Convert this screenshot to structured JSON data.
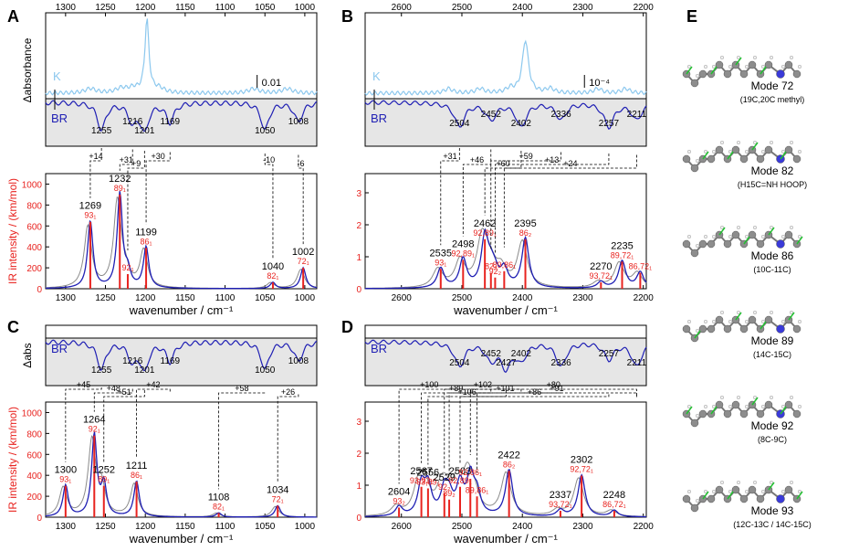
{
  "figure": {
    "y_axis_shared_left": "IR intensity / (km/mol)",
    "colors": {
      "bandA": "#1f1fb4",
      "calc": "#1f1fb4",
      "stick": "#e8231f",
      "exp": "#8a8a8a",
      "k": "#8cc8ee",
      "shade": "#e6e6e6",
      "label_red": "#e8231f"
    }
  },
  "chart_data": [
    {
      "id": "A",
      "type": "line",
      "top": {
        "ylabel": "Δabsorbance",
        "k_label": "K",
        "br_label": "BR",
        "scale_label": "0.01",
        "top_ticks": [
          1300,
          1250,
          1200,
          1150,
          1100,
          1050,
          1000
        ],
        "xlim": [
          1325,
          985
        ],
        "br_peaks": [
          1255,
          1216,
          1201,
          1169,
          1050,
          1008
        ]
      },
      "bottom": {
        "ylabel": "IR intensity / (km/mol)",
        "xlabel": "wavenumber / cm⁻¹",
        "xlim": [
          1325,
          985
        ],
        "ylim": [
          0,
          1100
        ],
        "yticks": [
          0,
          200,
          400,
          600,
          800,
          1000
        ],
        "xticks": [
          1300,
          1250,
          1200,
          1150,
          1100,
          1050,
          1000
        ],
        "sticks": [
          {
            "x": 1269,
            "y": 640,
            "label": "1269",
            "sub": "93₁"
          },
          {
            "x": 1232,
            "y": 900,
            "label": "1232",
            "sub": "89₁"
          },
          {
            "x": 1222,
            "y": 140,
            "label": "",
            "sub": "92₁"
          },
          {
            "x": 1199,
            "y": 390,
            "label": "1199",
            "sub": "86₁"
          },
          {
            "x": 1040,
            "y": 60,
            "label": "1040",
            "sub": "82₁"
          },
          {
            "x": 1002,
            "y": 200,
            "label": "1002",
            "sub": "72₁"
          }
        ],
        "shifts": [
          "+14",
          "+31",
          "+9",
          "+30",
          "-10",
          "-6"
        ]
      }
    },
    {
      "id": "B",
      "type": "line",
      "top": {
        "k_label": "K",
        "br_label": "BR",
        "scale_label": "10⁻⁴",
        "top_ticks": [
          2600,
          2500,
          2400,
          2300,
          2200
        ],
        "xlim": [
          2660,
          2195
        ],
        "br_peaks": [
          2504,
          2452,
          2402,
          2336,
          2257,
          2211
        ]
      },
      "bottom": {
        "xlabel": "wavenumber / cm⁻¹",
        "xlim": [
          2660,
          2195
        ],
        "ylim": [
          0,
          3.6
        ],
        "yticks": [
          0,
          1,
          2,
          3
        ],
        "xticks": [
          2600,
          2500,
          2400,
          2300,
          2200
        ],
        "sticks": [
          {
            "x": 2535,
            "y": 0.62,
            "label": "2535",
            "sub": "93₁"
          },
          {
            "x": 2498,
            "y": 0.9,
            "label": "2498",
            "sub": "92,89₁"
          },
          {
            "x": 2462,
            "y": 1.55,
            "label": "2462",
            "sub": "92,89₁"
          },
          {
            "x": 2452,
            "y": 0.5,
            "label": "",
            "sub": "82₂"
          },
          {
            "x": 2445,
            "y": 0.35,
            "label": "",
            "sub": "92₂"
          },
          {
            "x": 2430,
            "y": 0.55,
            "label": "",
            "sub": "89,86₁"
          },
          {
            "x": 2395,
            "y": 1.55,
            "label": "2395",
            "sub": "86₂"
          },
          {
            "x": 2270,
            "y": 0.2,
            "label": "2270",
            "sub": "93,72₁"
          },
          {
            "x": 2235,
            "y": 0.85,
            "label": "2235",
            "sub": "89,72₁"
          },
          {
            "x": 2205,
            "y": 0.5,
            "label": "",
            "sub": "86,72₁"
          }
        ],
        "shifts": [
          "+31",
          "+46",
          "+60",
          "+59",
          "+13",
          "+24"
        ]
      }
    },
    {
      "id": "C",
      "type": "line",
      "top": {
        "ylabel": "Δabs",
        "br_label": "BR",
        "xlim": [
          1325,
          985
        ],
        "br_peaks": [
          1255,
          1216,
          1201,
          1169,
          1050,
          1008
        ]
      },
      "bottom": {
        "ylabel": "IR intensity / (km/mol)",
        "xlabel": "wavenumber / cm⁻¹",
        "xlim": [
          1325,
          985
        ],
        "ylim": [
          0,
          1100
        ],
        "yticks": [
          0,
          200,
          400,
          600,
          800,
          1000
        ],
        "xticks": [
          1300,
          1250,
          1200,
          1150,
          1100,
          1050,
          1000
        ],
        "sticks": [
          {
            "x": 1300,
            "y": 300,
            "label": "1300",
            "sub": "93₁"
          },
          {
            "x": 1264,
            "y": 780,
            "label": "1264",
            "sub": "92₁"
          },
          {
            "x": 1252,
            "y": 300,
            "label": "1252",
            "sub": "89₁"
          },
          {
            "x": 1211,
            "y": 340,
            "label": "1211",
            "sub": "86₁"
          },
          {
            "x": 1108,
            "y": 40,
            "label": "1108",
            "sub": "82₁"
          },
          {
            "x": 1034,
            "y": 110,
            "label": "1034",
            "sub": "72₁"
          }
        ],
        "shifts": [
          "+45",
          "+48",
          "+51",
          "+42",
          "+58",
          "+26"
        ]
      }
    },
    {
      "id": "D",
      "type": "line",
      "top": {
        "br_label": "BR",
        "xlim": [
          2660,
          2195
        ],
        "br_peaks": [
          2504,
          2452,
          2427,
          2402,
          2336,
          2257,
          2211
        ]
      },
      "bottom": {
        "xlabel": "wavenumber / cm⁻¹",
        "xlim": [
          2660,
          2195
        ],
        "ylim": [
          0,
          3.6
        ],
        "yticks": [
          0,
          1,
          2,
          3
        ],
        "xticks": [
          2600,
          2500,
          2400,
          2300,
          2200
        ],
        "sticks": [
          {
            "x": 2604,
            "y": 0.3,
            "label": "2604",
            "sub": "93₂"
          },
          {
            "x": 2567,
            "y": 0.95,
            "label": "2567",
            "sub": "93,92₁"
          },
          {
            "x": 2556,
            "y": 0.9,
            "label": "2556",
            "sub": "93,89₁"
          },
          {
            "x": 2529,
            "y": 0.75,
            "label": "2529",
            "sub": "92₂"
          },
          {
            "x": 2521,
            "y": 0.55,
            "label": "",
            "sub": "89₂"
          },
          {
            "x": 2503,
            "y": 0.95,
            "label": "2503",
            "sub": "92,89₁"
          },
          {
            "x": 2486,
            "y": 1.2,
            "label": "",
            "sub": "92,86₁"
          },
          {
            "x": 2475,
            "y": 0.65,
            "label": "",
            "sub": "89,86₁"
          },
          {
            "x": 2422,
            "y": 1.45,
            "label": "2422",
            "sub": "86₂"
          },
          {
            "x": 2337,
            "y": 0.2,
            "label": "2337",
            "sub": "93,72₁"
          },
          {
            "x": 2302,
            "y": 1.3,
            "label": "2302",
            "sub": "92,72₁"
          },
          {
            "x": 2248,
            "y": 0.2,
            "label": "2248",
            "sub": "86,72₁"
          }
        ],
        "shifts": [
          "+100",
          "+89",
          "+106",
          "+102",
          "+101",
          "+86",
          "+80",
          "+91"
        ]
      }
    }
  ],
  "panel_E": {
    "title": "E",
    "modes": [
      {
        "name": "Mode 72",
        "desc": "(19C,20C methyl)"
      },
      {
        "name": "Mode 82",
        "desc": "(H15C=NH HOOP)"
      },
      {
        "name": "Mode 86",
        "desc": "(10C-11C)"
      },
      {
        "name": "Mode 89",
        "desc": "(14C-15C)"
      },
      {
        "name": "Mode 92",
        "desc": "(8C-9C)"
      },
      {
        "name": "Mode 93",
        "desc": "(12C-13C / 14C-15C)"
      }
    ]
  }
}
